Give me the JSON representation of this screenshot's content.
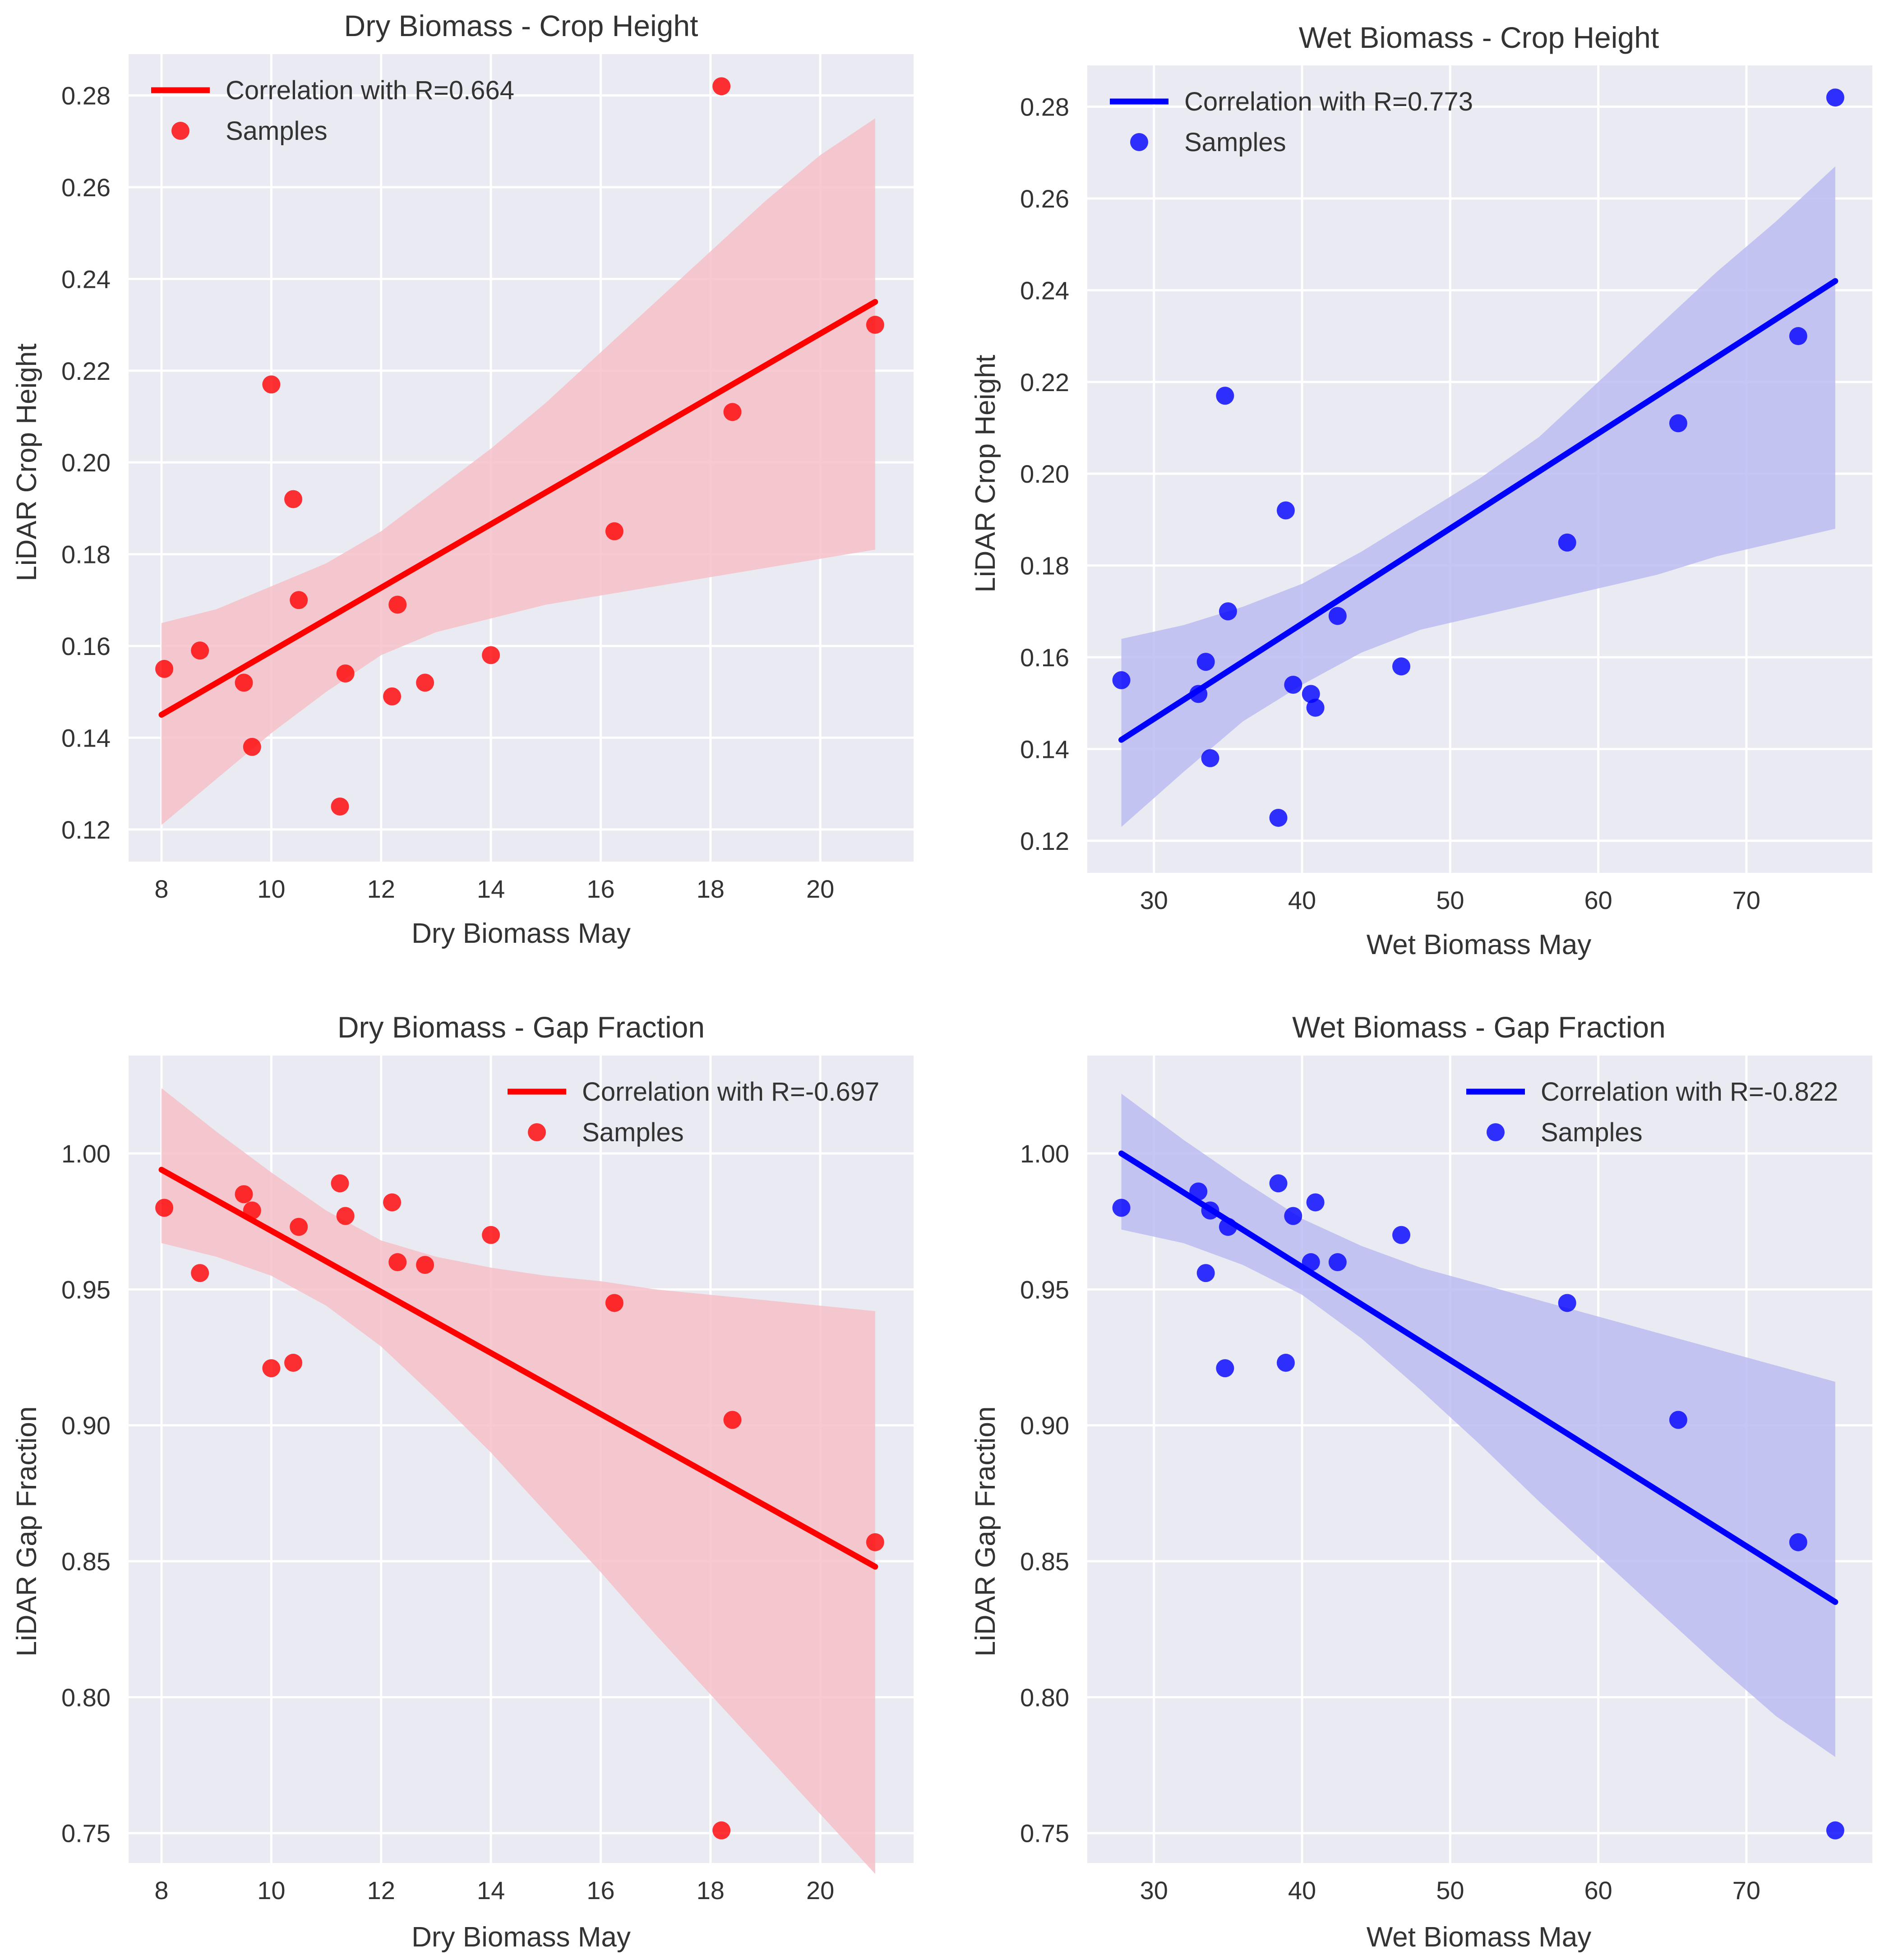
{
  "colors": {
    "background": "#eaeaf2",
    "grid": "#ffffff",
    "red": "#ff0000",
    "red_band": "#f6bfc8",
    "blue": "#0000ff",
    "blue_band": "#bcbcf2"
  },
  "chart_data": [
    {
      "type": "scatter",
      "title": "Dry Biomass - Crop Height",
      "xlabel": "Dry Biomass May",
      "ylabel": "LiDAR Crop Height",
      "color": "red",
      "xlim": [
        7.4,
        21.7
      ],
      "ylim": [
        0.113,
        0.289
      ],
      "xticks": [
        8,
        10,
        12,
        14,
        16,
        18,
        20
      ],
      "yticks": [
        0.12,
        0.14,
        0.16,
        0.18,
        0.2,
        0.22,
        0.24,
        0.26,
        0.28
      ],
      "legend": {
        "position": "top-left",
        "line_label": "Correlation with R=0.664",
        "points_label": "Samples"
      },
      "x": [
        8.05,
        8.7,
        9.5,
        9.65,
        10.0,
        10.4,
        10.5,
        11.25,
        11.35,
        12.2,
        12.3,
        12.8,
        14.0,
        16.25,
        18.2,
        18.4,
        21.0
      ],
      "y": [
        0.155,
        0.159,
        0.152,
        0.138,
        0.217,
        0.192,
        0.17,
        0.125,
        0.154,
        0.149,
        0.169,
        0.152,
        0.158,
        0.185,
        0.282,
        0.211,
        0.23
      ],
      "regression_line": {
        "x": [
          8.0,
          21.0
        ],
        "y": [
          0.145,
          0.235
        ]
      },
      "confidence_band": {
        "x": [
          8.0,
          9.0,
          10.0,
          11.0,
          12.0,
          13.0,
          14.0,
          15.0,
          16.0,
          17.0,
          18.0,
          19.0,
          20.0,
          21.0
        ],
        "lower": [
          0.121,
          0.131,
          0.141,
          0.15,
          0.158,
          0.163,
          0.166,
          0.169,
          0.171,
          0.173,
          0.175,
          0.177,
          0.179,
          0.181
        ],
        "upper": [
          0.165,
          0.168,
          0.173,
          0.178,
          0.185,
          0.194,
          0.203,
          0.213,
          0.224,
          0.235,
          0.246,
          0.257,
          0.267,
          0.275
        ]
      }
    },
    {
      "type": "scatter",
      "title": "Wet Biomass - Crop Height",
      "xlabel": "Wet Biomass May",
      "ylabel": "LiDAR Crop Height",
      "color": "blue",
      "xlim": [
        25.5,
        78.5
      ],
      "ylim": [
        0.113,
        0.289
      ],
      "xticks": [
        30,
        40,
        50,
        60,
        70
      ],
      "yticks": [
        0.12,
        0.14,
        0.16,
        0.18,
        0.2,
        0.22,
        0.24,
        0.26,
        0.28
      ],
      "legend": {
        "position": "top-left",
        "line_label": "Correlation with R=0.773",
        "points_label": "Samples"
      },
      "x": [
        27.8,
        33.0,
        33.5,
        33.8,
        34.8,
        35.0,
        38.4,
        38.9,
        39.4,
        40.6,
        40.9,
        42.4,
        46.7,
        57.9,
        65.4,
        73.5,
        76.0
      ],
      "y": [
        0.155,
        0.152,
        0.159,
        0.138,
        0.217,
        0.17,
        0.125,
        0.192,
        0.154,
        0.152,
        0.149,
        0.169,
        0.158,
        0.185,
        0.211,
        0.23,
        0.282
      ],
      "regression_line": {
        "x": [
          27.8,
          76.0
        ],
        "y": [
          0.142,
          0.242
        ]
      },
      "confidence_band": {
        "x": [
          27.8,
          32.0,
          36.0,
          40.0,
          44.0,
          48.0,
          52.0,
          56.0,
          60.0,
          64.0,
          68.0,
          72.0,
          76.0
        ],
        "lower": [
          0.123,
          0.135,
          0.146,
          0.154,
          0.161,
          0.166,
          0.169,
          0.172,
          0.175,
          0.178,
          0.182,
          0.185,
          0.188
        ],
        "upper": [
          0.164,
          0.167,
          0.171,
          0.176,
          0.183,
          0.191,
          0.199,
          0.208,
          0.22,
          0.232,
          0.244,
          0.255,
          0.267
        ]
      }
    },
    {
      "type": "scatter",
      "title": "Dry Biomass - Gap Fraction",
      "xlabel": "Dry Biomass May",
      "ylabel": "LiDAR Gap Fraction",
      "color": "red",
      "xlim": [
        7.4,
        21.7
      ],
      "ylim": [
        0.739,
        1.036
      ],
      "xticks": [
        8,
        10,
        12,
        14,
        16,
        18,
        20
      ],
      "yticks": [
        0.75,
        0.8,
        0.85,
        0.9,
        0.95,
        1.0
      ],
      "legend": {
        "position": "top-right",
        "line_label": "Correlation with R=-0.697",
        "points_label": "Samples"
      },
      "x": [
        8.05,
        8.7,
        9.5,
        9.65,
        10.0,
        10.4,
        10.5,
        11.25,
        11.35,
        12.2,
        12.3,
        12.8,
        14.0,
        16.25,
        18.2,
        18.4,
        21.0
      ],
      "y": [
        0.98,
        0.956,
        0.985,
        0.979,
        0.921,
        0.923,
        0.973,
        0.989,
        0.977,
        0.982,
        0.96,
        0.959,
        0.97,
        0.945,
        0.751,
        0.902,
        0.857
      ],
      "regression_line": {
        "x": [
          8.0,
          21.0
        ],
        "y": [
          0.994,
          0.848
        ]
      },
      "confidence_band": {
        "x": [
          8.0,
          9.0,
          10.0,
          11.0,
          12.0,
          13.0,
          14.0,
          15.0,
          16.0,
          17.0,
          18.0,
          19.0,
          20.0,
          21.0
        ],
        "lower": [
          0.967,
          0.962,
          0.955,
          0.944,
          0.929,
          0.91,
          0.89,
          0.868,
          0.846,
          0.823,
          0.801,
          0.779,
          0.757,
          0.735
        ],
        "upper": [
          1.024,
          1.008,
          0.993,
          0.979,
          0.968,
          0.962,
          0.958,
          0.955,
          0.953,
          0.95,
          0.948,
          0.946,
          0.944,
          0.942
        ]
      }
    },
    {
      "type": "scatter",
      "title": "Wet Biomass - Gap Fraction",
      "xlabel": "Wet Biomass May",
      "ylabel": "LiDAR Gap Fraction",
      "color": "blue",
      "xlim": [
        25.5,
        78.5
      ],
      "ylim": [
        0.739,
        1.036
      ],
      "xticks": [
        30,
        40,
        50,
        60,
        70
      ],
      "yticks": [
        0.75,
        0.8,
        0.85,
        0.9,
        0.95,
        1.0
      ],
      "legend": {
        "position": "top-right",
        "line_label": "Correlation with R=-0.822",
        "points_label": "Samples"
      },
      "x": [
        27.8,
        33.0,
        33.5,
        33.8,
        34.8,
        35.0,
        38.4,
        38.9,
        39.4,
        40.6,
        40.9,
        42.4,
        46.7,
        57.9,
        65.4,
        73.5,
        76.0
      ],
      "y": [
        0.98,
        0.986,
        0.956,
        0.979,
        0.921,
        0.973,
        0.989,
        0.923,
        0.977,
        0.96,
        0.982,
        0.96,
        0.97,
        0.945,
        0.902,
        0.857,
        0.751
      ],
      "regression_line": {
        "x": [
          27.8,
          76.0
        ],
        "y": [
          1.0,
          0.835
        ]
      },
      "confidence_band": {
        "x": [
          27.8,
          32.0,
          36.0,
          40.0,
          44.0,
          48.0,
          52.0,
          56.0,
          60.0,
          64.0,
          68.0,
          72.0,
          76.0
        ],
        "lower": [
          0.972,
          0.967,
          0.959,
          0.948,
          0.932,
          0.913,
          0.893,
          0.872,
          0.852,
          0.832,
          0.812,
          0.793,
          0.778
        ],
        "upper": [
          1.022,
          1.005,
          0.99,
          0.976,
          0.966,
          0.958,
          0.952,
          0.946,
          0.94,
          0.934,
          0.928,
          0.922,
          0.916
        ]
      }
    }
  ]
}
